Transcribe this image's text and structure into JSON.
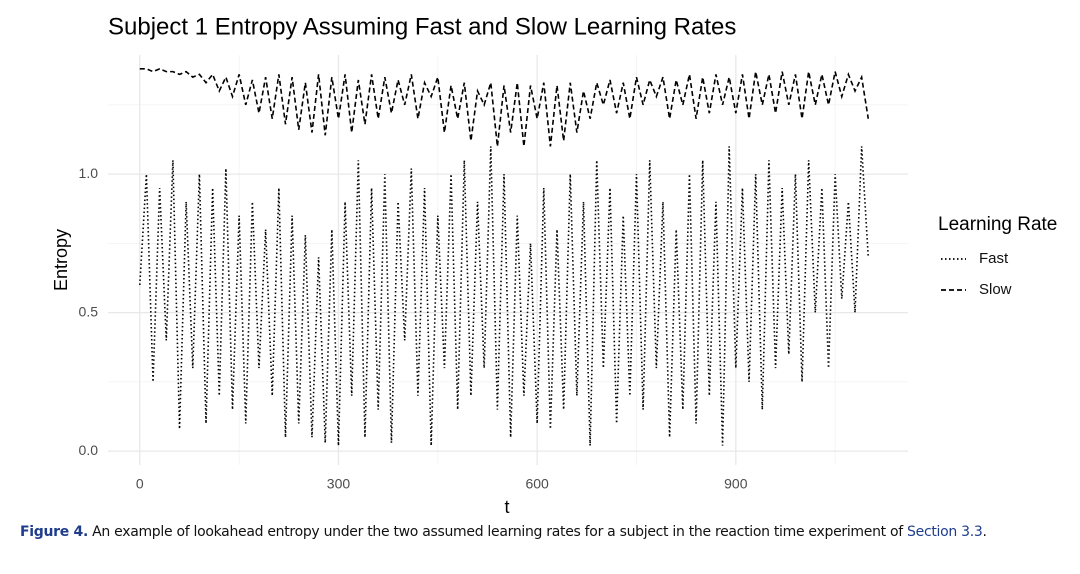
{
  "chart_data": {
    "type": "line",
    "title": "Subject 1 Entropy Assuming Fast and Slow Learning Rates",
    "xlabel": "t",
    "ylabel": "Entropy",
    "legend_title": "Learning Rate",
    "legend": "right",
    "x": [
      0,
      10,
      20,
      30,
      40,
      50,
      60,
      70,
      80,
      90,
      100,
      110,
      120,
      130,
      140,
      150,
      160,
      170,
      180,
      190,
      200,
      210,
      220,
      230,
      240,
      250,
      260,
      270,
      280,
      290,
      300,
      310,
      320,
      330,
      340,
      350,
      360,
      370,
      380,
      390,
      400,
      410,
      420,
      430,
      440,
      450,
      460,
      470,
      480,
      490,
      500,
      510,
      520,
      530,
      540,
      550,
      560,
      570,
      580,
      590,
      600,
      610,
      620,
      630,
      640,
      650,
      660,
      670,
      680,
      690,
      700,
      710,
      720,
      730,
      740,
      750,
      760,
      770,
      780,
      790,
      800,
      810,
      820,
      830,
      840,
      850,
      860,
      870,
      880,
      890,
      900,
      910,
      920,
      930,
      940,
      950,
      960,
      970,
      980,
      990,
      1000,
      1010,
      1020,
      1030,
      1040,
      1050,
      1060,
      1070,
      1080,
      1090,
      1100
    ],
    "series": [
      {
        "name": "Fast",
        "color": "#000000",
        "dash": "dotted",
        "values": [
          0.6,
          1.0,
          0.25,
          0.95,
          0.4,
          1.05,
          0.08,
          0.9,
          0.3,
          1.0,
          0.1,
          0.95,
          0.2,
          1.02,
          0.15,
          0.85,
          0.1,
          0.9,
          0.3,
          0.8,
          0.2,
          0.95,
          0.05,
          0.85,
          0.1,
          0.78,
          0.05,
          0.7,
          0.03,
          0.8,
          0.02,
          0.9,
          0.2,
          1.05,
          0.05,
          0.95,
          0.15,
          1.0,
          0.03,
          0.9,
          0.4,
          1.02,
          0.2,
          0.95,
          0.02,
          0.85,
          0.3,
          1.0,
          0.15,
          1.05,
          0.2,
          0.9,
          0.3,
          1.1,
          0.15,
          1.0,
          0.05,
          0.85,
          0.2,
          0.75,
          0.1,
          0.95,
          0.08,
          0.8,
          0.15,
          1.0,
          0.2,
          0.9,
          0.02,
          1.05,
          0.3,
          0.95,
          0.1,
          0.85,
          0.2,
          1.0,
          0.15,
          1.05,
          0.3,
          0.9,
          0.05,
          0.8,
          0.15,
          1.0,
          0.1,
          1.05,
          0.2,
          0.9,
          0.02,
          1.1,
          0.3,
          0.95,
          0.25,
          1.0,
          0.15,
          1.05,
          0.3,
          0.95,
          0.35,
          1.0,
          0.25,
          1.05,
          0.5,
          0.95,
          0.3,
          1.0,
          0.55,
          0.9,
          0.5,
          1.1,
          0.7
        ]
      },
      {
        "name": "Slow",
        "color": "#000000",
        "dash": "dashed",
        "values": [
          1.38,
          1.38,
          1.37,
          1.38,
          1.37,
          1.37,
          1.36,
          1.37,
          1.35,
          1.36,
          1.33,
          1.36,
          1.3,
          1.35,
          1.28,
          1.36,
          1.25,
          1.34,
          1.22,
          1.35,
          1.2,
          1.36,
          1.18,
          1.35,
          1.16,
          1.33,
          1.15,
          1.36,
          1.14,
          1.35,
          1.2,
          1.36,
          1.15,
          1.34,
          1.18,
          1.36,
          1.2,
          1.35,
          1.22,
          1.34,
          1.25,
          1.36,
          1.2,
          1.33,
          1.28,
          1.35,
          1.15,
          1.32,
          1.2,
          1.33,
          1.12,
          1.3,
          1.25,
          1.33,
          1.1,
          1.32,
          1.15,
          1.33,
          1.1,
          1.32,
          1.2,
          1.33,
          1.1,
          1.32,
          1.12,
          1.33,
          1.15,
          1.3,
          1.2,
          1.33,
          1.25,
          1.34,
          1.22,
          1.33,
          1.2,
          1.35,
          1.25,
          1.34,
          1.28,
          1.35,
          1.2,
          1.34,
          1.25,
          1.36,
          1.2,
          1.35,
          1.22,
          1.36,
          1.25,
          1.35,
          1.22,
          1.36,
          1.2,
          1.37,
          1.25,
          1.36,
          1.22,
          1.37,
          1.25,
          1.36,
          1.2,
          1.37,
          1.25,
          1.36,
          1.25,
          1.37,
          1.28,
          1.36,
          1.3,
          1.35,
          1.2
        ]
      }
    ],
    "xlim": [
      -48,
      1160
    ],
    "ylim": [
      -0.05,
      1.43
    ],
    "xticks": [
      0,
      300,
      600,
      900
    ],
    "yticks": [
      {
        "value": 0,
        "label": "0.0"
      },
      0.5,
      {
        "value": 1,
        "label": "1.0"
      }
    ],
    "x_minor_grid": [
      150,
      450,
      750,
      1050
    ],
    "y_minor_grid": [
      0.25,
      0.75,
      1.25
    ],
    "grid": true
  },
  "caption": {
    "label": "Figure 4.",
    "text": "An example of lookahead entropy under the two assumed learning rates for a subject in the reaction time experiment of",
    "link": "Section 3.3",
    "end": "."
  }
}
